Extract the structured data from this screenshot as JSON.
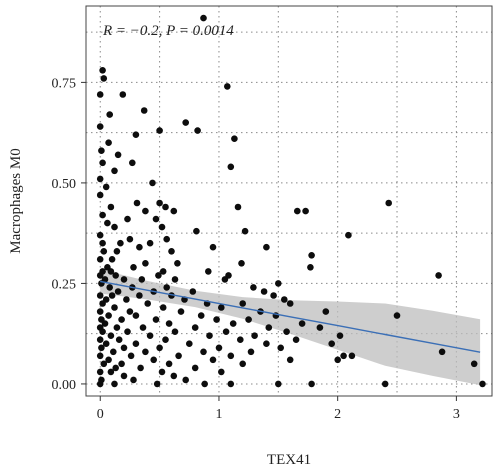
{
  "chart_data": {
    "type": "scatter",
    "xlabel": "TEX41",
    "ylabel": "Macrophages M0",
    "annotation": "R = −0.2, P = 0.0014",
    "xlim": [
      -0.12,
      3.3
    ],
    "ylim": [
      -0.03,
      0.94
    ],
    "xticks": [
      0,
      1,
      2,
      3
    ],
    "xtick_labels": [
      "0",
      "1",
      "2",
      "3"
    ],
    "yticks": [
      0.0,
      0.25,
      0.5,
      0.75
    ],
    "ytick_labels": [
      "0.00",
      "0.25",
      "0.50",
      "0.75"
    ],
    "grid": true,
    "regression": {
      "x": [
        0,
        0.4,
        0.8,
        1.2,
        1.6,
        2.0,
        2.4,
        2.8,
        3.2
      ],
      "y": [
        0.255,
        0.233,
        0.211,
        0.189,
        0.167,
        0.145,
        0.123,
        0.101,
        0.079
      ],
      "lower": [
        0.225,
        0.21,
        0.191,
        0.162,
        0.125,
        0.085,
        0.045,
        0.02,
        -0.003
      ],
      "upper": [
        0.285,
        0.256,
        0.232,
        0.216,
        0.208,
        0.205,
        0.2,
        0.182,
        0.161
      ]
    },
    "points": [
      [
        0.87,
        0.91
      ],
      [
        0.02,
        0.78
      ],
      [
        0.03,
        0.76
      ],
      [
        0.0,
        0.72
      ],
      [
        0.19,
        0.72
      ],
      [
        1.07,
        0.74
      ],
      [
        0.08,
        0.67
      ],
      [
        0.37,
        0.68
      ],
      [
        0.72,
        0.65
      ],
      [
        0.0,
        0.64
      ],
      [
        0.5,
        0.63
      ],
      [
        0.82,
        0.63
      ],
      [
        0.3,
        0.62
      ],
      [
        1.13,
        0.61
      ],
      [
        0.07,
        0.6
      ],
      [
        0.01,
        0.58
      ],
      [
        0.15,
        0.57
      ],
      [
        0.02,
        0.55
      ],
      [
        0.27,
        0.55
      ],
      [
        0.12,
        0.53
      ],
      [
        1.1,
        0.54
      ],
      [
        0.0,
        0.51
      ],
      [
        0.44,
        0.5
      ],
      [
        0.05,
        0.49
      ],
      [
        0.0,
        0.47
      ],
      [
        0.5,
        0.45
      ],
      [
        0.55,
        0.44
      ],
      [
        0.31,
        0.45
      ],
      [
        0.09,
        0.44
      ],
      [
        1.16,
        0.44
      ],
      [
        1.66,
        0.43
      ],
      [
        1.73,
        0.43
      ],
      [
        0.62,
        0.43
      ],
      [
        0.38,
        0.43
      ],
      [
        2.43,
        0.45
      ],
      [
        0.02,
        0.42
      ],
      [
        0.23,
        0.41
      ],
      [
        0.47,
        0.41
      ],
      [
        0.06,
        0.4
      ],
      [
        0.12,
        0.39
      ],
      [
        0.52,
        0.39
      ],
      [
        1.22,
        0.38
      ],
      [
        0.81,
        0.38
      ],
      [
        2.09,
        0.37
      ],
      [
        0.0,
        0.37
      ],
      [
        0.25,
        0.36
      ],
      [
        0.17,
        0.35
      ],
      [
        0.42,
        0.35
      ],
      [
        0.95,
        0.34
      ],
      [
        1.4,
        0.34
      ],
      [
        0.03,
        0.33
      ],
      [
        0.14,
        0.33
      ],
      [
        1.78,
        0.32
      ],
      [
        0.0,
        0.31
      ],
      [
        0.1,
        0.31
      ],
      [
        0.38,
        0.3
      ],
      [
        0.65,
        0.3
      ],
      [
        1.19,
        0.3
      ],
      [
        0.06,
        0.29
      ],
      [
        0.28,
        0.29
      ],
      [
        1.77,
        0.29
      ],
      [
        0.02,
        0.28
      ],
      [
        0.09,
        0.28
      ],
      [
        0.53,
        0.28
      ],
      [
        0.91,
        0.28
      ],
      [
        0.0,
        0.27
      ],
      [
        0.13,
        0.27
      ],
      [
        0.49,
        0.27
      ],
      [
        1.08,
        0.27
      ],
      [
        2.85,
        0.27
      ],
      [
        0.04,
        0.26
      ],
      [
        0.2,
        0.26
      ],
      [
        0.35,
        0.26
      ],
      [
        0.63,
        0.26
      ],
      [
        1.05,
        0.26
      ],
      [
        1.5,
        0.25
      ],
      [
        0.01,
        0.25
      ],
      [
        0.08,
        0.24
      ],
      [
        0.27,
        0.24
      ],
      [
        0.56,
        0.24
      ],
      [
        1.29,
        0.24
      ],
      [
        0.15,
        0.23
      ],
      [
        0.45,
        0.23
      ],
      [
        0.78,
        0.23
      ],
      [
        1.38,
        0.23
      ],
      [
        0.0,
        0.22
      ],
      [
        0.1,
        0.22
      ],
      [
        0.33,
        0.22
      ],
      [
        0.6,
        0.22
      ],
      [
        1.46,
        0.22
      ],
      [
        0.05,
        0.21
      ],
      [
        0.22,
        0.21
      ],
      [
        0.71,
        0.21
      ],
      [
        1.55,
        0.21
      ],
      [
        0.02,
        0.2
      ],
      [
        0.4,
        0.2
      ],
      [
        0.9,
        0.2
      ],
      [
        1.2,
        0.2
      ],
      [
        1.6,
        0.2
      ],
      [
        0.12,
        0.19
      ],
      [
        0.53,
        0.19
      ],
      [
        1.02,
        0.19
      ],
      [
        0.0,
        0.18
      ],
      [
        0.25,
        0.18
      ],
      [
        0.68,
        0.18
      ],
      [
        1.35,
        0.18
      ],
      [
        1.9,
        0.18
      ],
      [
        0.07,
        0.17
      ],
      [
        0.3,
        0.17
      ],
      [
        0.85,
        0.17
      ],
      [
        1.48,
        0.17
      ],
      [
        2.5,
        0.17
      ],
      [
        0.01,
        0.16
      ],
      [
        0.18,
        0.16
      ],
      [
        0.47,
        0.16
      ],
      [
        0.98,
        0.16
      ],
      [
        1.25,
        0.16
      ],
      [
        0.04,
        0.15
      ],
      [
        0.58,
        0.15
      ],
      [
        1.12,
        0.15
      ],
      [
        1.7,
        0.15
      ],
      [
        0.0,
        0.14
      ],
      [
        0.14,
        0.14
      ],
      [
        0.36,
        0.14
      ],
      [
        0.8,
        0.14
      ],
      [
        1.42,
        0.14
      ],
      [
        1.85,
        0.14
      ],
      [
        0.02,
        0.13
      ],
      [
        0.23,
        0.13
      ],
      [
        0.63,
        0.13
      ],
      [
        1.06,
        0.13
      ],
      [
        1.57,
        0.13
      ],
      [
        0.09,
        0.12
      ],
      [
        0.42,
        0.12
      ],
      [
        0.92,
        0.12
      ],
      [
        1.3,
        0.12
      ],
      [
        2.02,
        0.12
      ],
      [
        0.0,
        0.11
      ],
      [
        0.16,
        0.11
      ],
      [
        0.55,
        0.11
      ],
      [
        1.18,
        0.11
      ],
      [
        1.65,
        0.11
      ],
      [
        0.05,
        0.1
      ],
      [
        0.3,
        0.1
      ],
      [
        0.75,
        0.1
      ],
      [
        1.4,
        0.1
      ],
      [
        1.95,
        0.1
      ],
      [
        0.01,
        0.09
      ],
      [
        0.2,
        0.09
      ],
      [
        0.5,
        0.09
      ],
      [
        1.0,
        0.09
      ],
      [
        1.52,
        0.09
      ],
      [
        0.11,
        0.08
      ],
      [
        0.38,
        0.08
      ],
      [
        0.87,
        0.08
      ],
      [
        1.27,
        0.08
      ],
      [
        2.05,
        0.07
      ],
      [
        2.12,
        0.07
      ],
      [
        0.0,
        0.07
      ],
      [
        0.26,
        0.07
      ],
      [
        0.66,
        0.07
      ],
      [
        1.1,
        0.07
      ],
      [
        0.07,
        0.06
      ],
      [
        0.45,
        0.06
      ],
      [
        0.95,
        0.06
      ],
      [
        1.6,
        0.06
      ],
      [
        0.03,
        0.05
      ],
      [
        0.18,
        0.05
      ],
      [
        0.58,
        0.05
      ],
      [
        1.2,
        0.05
      ],
      [
        0.13,
        0.04
      ],
      [
        0.34,
        0.04
      ],
      [
        0.8,
        0.04
      ],
      [
        0.0,
        0.03
      ],
      [
        0.09,
        0.03
      ],
      [
        0.52,
        0.03
      ],
      [
        1.02,
        0.03
      ],
      [
        0.2,
        0.02
      ],
      [
        0.62,
        0.02
      ],
      [
        0.01,
        0.01
      ],
      [
        0.28,
        0.01
      ],
      [
        0.72,
        0.01
      ],
      [
        0.0,
        0.0
      ],
      [
        0.12,
        0.0
      ],
      [
        0.48,
        0.0
      ],
      [
        0.88,
        0.0
      ],
      [
        1.1,
        0.0
      ],
      [
        1.5,
        0.0
      ],
      [
        1.78,
        0.0
      ],
      [
        2.4,
        0.0
      ],
      [
        3.22,
        0.0
      ],
      [
        2.88,
        0.08
      ],
      [
        3.15,
        0.05
      ],
      [
        2.0,
        0.06
      ],
      [
        0.56,
        0.36
      ],
      [
        0.6,
        0.33
      ],
      [
        0.02,
        0.35
      ],
      [
        0.33,
        0.34
      ]
    ]
  }
}
